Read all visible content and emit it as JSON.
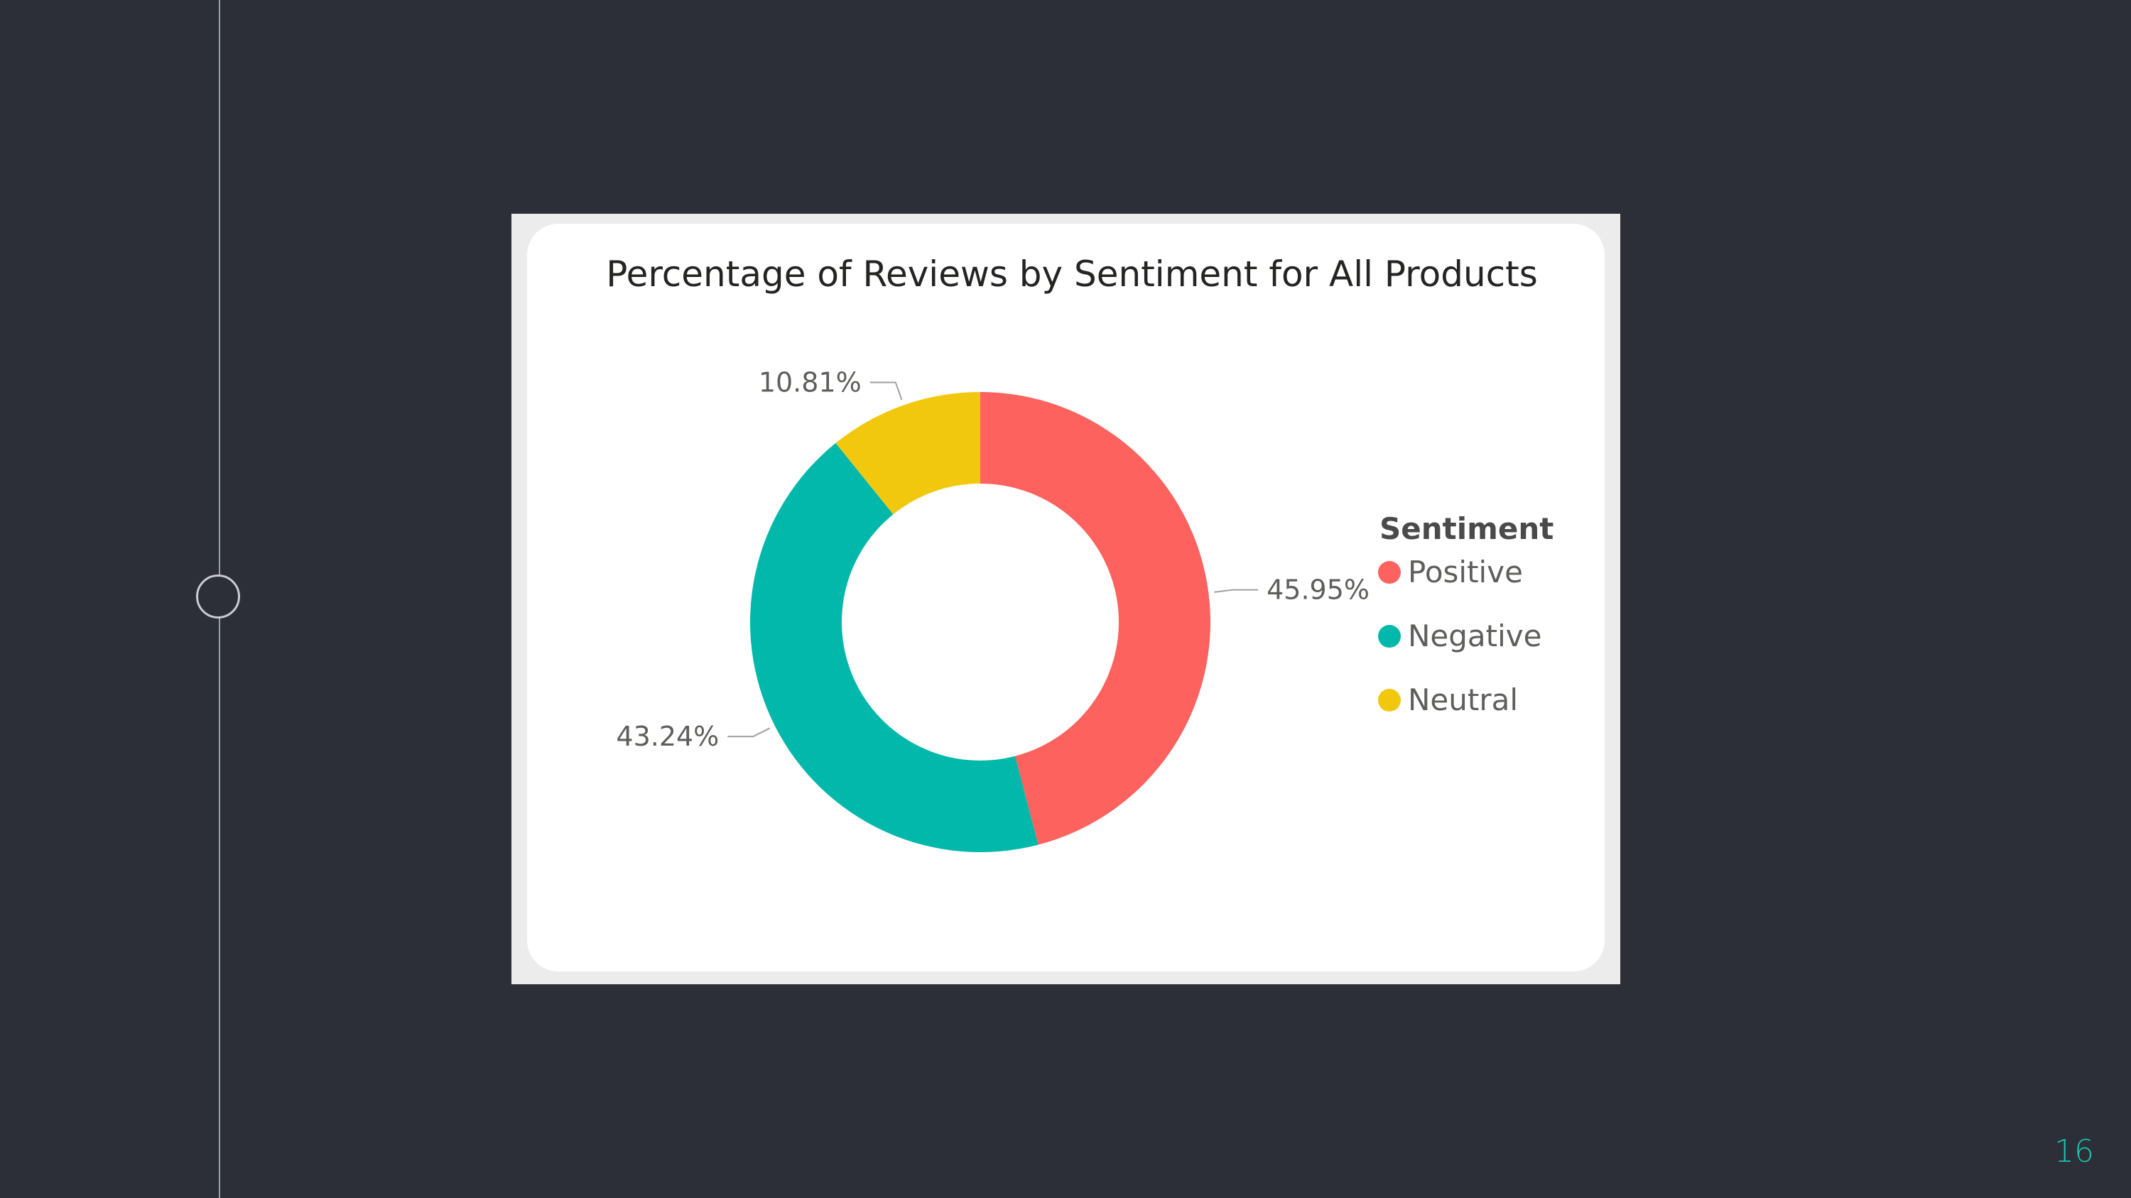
{
  "slide": {
    "page_number": "16",
    "accent_color": "#1fbfb0",
    "background_color": "#2c2f38"
  },
  "chart_data": {
    "type": "pie",
    "variant": "donut",
    "title": "Percentage of Reviews by Sentiment for All Products",
    "legend": {
      "title": "Sentiment",
      "placement": "right"
    },
    "series": [
      {
        "name": "Positive",
        "value": 45.95,
        "label": "45.95%",
        "color": "#fd625e"
      },
      {
        "name": "Negative",
        "value": 43.24,
        "label": "43.24%",
        "color": "#01b8aa"
      },
      {
        "name": "Neutral",
        "value": 10.81,
        "label": "10.81%",
        "color": "#f2c80f"
      }
    ]
  }
}
